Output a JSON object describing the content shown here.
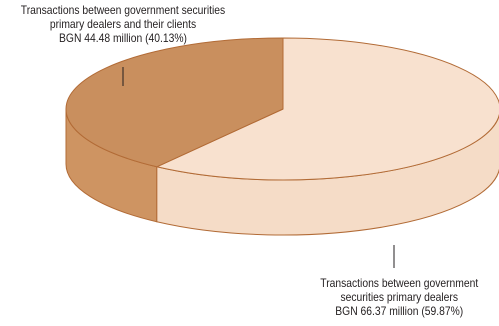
{
  "chart_data": {
    "type": "pie",
    "style": "3d",
    "title": "",
    "slices": [
      {
        "label_lines": [
          "Transactions between government securities",
          "primary dealers and their clients",
          "BGN 44.48 million (40.13%)"
        ],
        "value": 44.48,
        "percent": 40.13,
        "color": "#c98f5e",
        "side_color": "#ce9462"
      },
      {
        "label_lines": [
          "Transactions between government",
          "securities primary dealers",
          "BGN 66.37 million (59.87%)"
        ],
        "value": 66.37,
        "percent": 59.87,
        "color": "#f8e1cf",
        "side_color": "#f5dcc7"
      }
    ],
    "legend": "none",
    "outline_color": "#b26b36"
  }
}
